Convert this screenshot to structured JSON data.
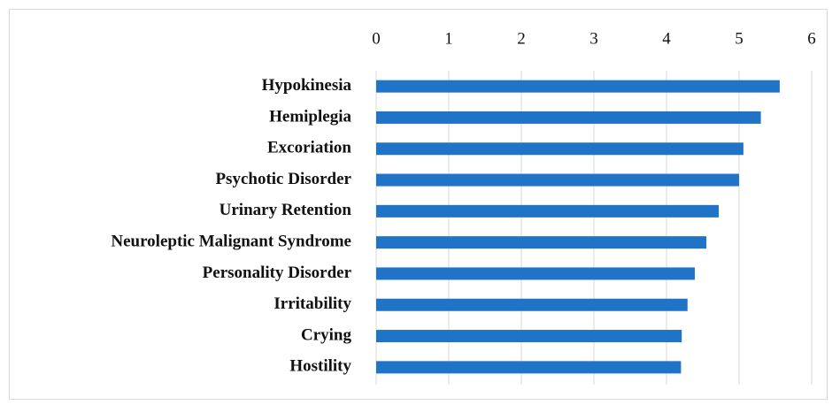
{
  "chart_data": {
    "type": "bar",
    "orientation": "horizontal",
    "categories": [
      "Hypokinesia",
      "Hemiplegia",
      "Excoriation",
      "Psychotic Disorder",
      "Urinary Retention",
      "Neuroleptic Malignant Syndrome",
      "Personality Disorder",
      "Irritability",
      "Crying",
      "Hostility"
    ],
    "values": [
      5.56,
      5.3,
      5.06,
      5.0,
      4.72,
      4.55,
      4.39,
      4.29,
      4.21,
      4.2
    ],
    "color": "#1f74c8",
    "xlim": [
      0,
      6
    ],
    "xticks": [
      0,
      1,
      2,
      3,
      4,
      5,
      6
    ],
    "grid": true
  }
}
